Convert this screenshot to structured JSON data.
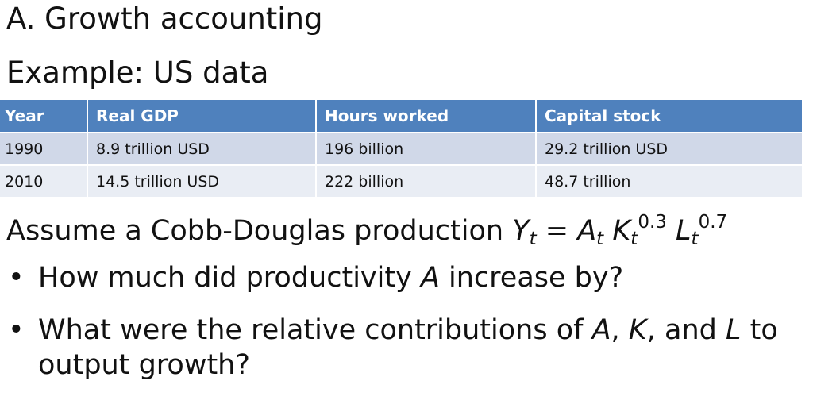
{
  "slide": {
    "title": "A.  Growth accounting",
    "subtitle": "Example: US data"
  },
  "table": {
    "headers": [
      "Year",
      "Real GDP",
      "Hours worked",
      "Capital stock"
    ],
    "rows": [
      [
        "1990",
        "8.9 trillion USD",
        "196 billion",
        "29.2 trillion USD"
      ],
      [
        "2010",
        "14.5 trillion USD",
        "222 billion",
        "48.7 trillion"
      ]
    ]
  },
  "assumption": {
    "lead": "Assume a Cobb-Douglas production ",
    "Y": "Y",
    "A": "A",
    "K": "K",
    "L": "L",
    "t": "t",
    "eq": " = ",
    "k_exp": "0.3",
    "l_exp": "0.7"
  },
  "questions": [
    {
      "before": "How much did productivity ",
      "var": "A",
      "after": " increase by?"
    },
    {
      "before": "What were the relative contributions of ",
      "v1": "A",
      "sep1": ", ",
      "v2": "K",
      "sep2": ", and ",
      "v3": "L",
      "after": " to output growth?"
    }
  ]
}
